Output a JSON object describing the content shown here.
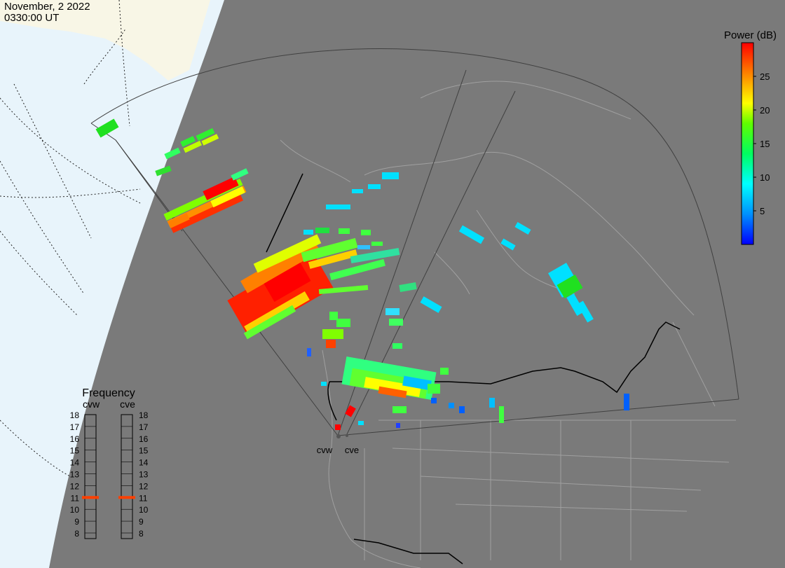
{
  "header": {
    "date": "November, 2 2022",
    "time": "0330:00 UT"
  },
  "colorbar": {
    "title": "Power (dB)",
    "ticks": [
      "25",
      "20",
      "15",
      "10",
      "5"
    ],
    "tick_values": [
      25,
      20,
      15,
      10,
      5
    ],
    "range": [
      0,
      30
    ],
    "colors": [
      "#0000ff",
      "#00a0ff",
      "#00ffff",
      "#00ff60",
      "#40ff00",
      "#ffff00",
      "#ff8000",
      "#ff0000"
    ]
  },
  "frequency_panel": {
    "title": "Frequency",
    "radars": [
      "cvw",
      "cve"
    ],
    "levels": [
      "18",
      "17",
      "16",
      "15",
      "14",
      "13",
      "12",
      "11",
      "10",
      "9",
      "8"
    ],
    "selected_level": "11",
    "marker_color": "#ff4000"
  },
  "radar_sites": {
    "west_label": "cvw",
    "east_label": "cve"
  },
  "colors": {
    "earth": "#7a7a7a",
    "ocean": "#e8f4fb",
    "land_unlit": "#f8f6e6",
    "boundaries": "#a0a0a0",
    "fov": "#404040"
  }
}
